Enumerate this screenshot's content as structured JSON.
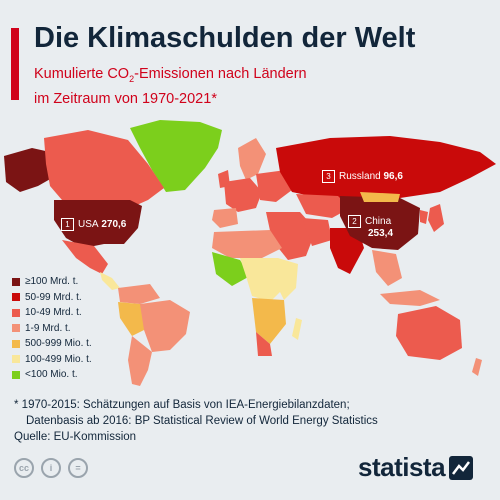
{
  "title": "Die Klimaschulden der Welt",
  "subtitle_prefix": "Kumulierte CO",
  "subtitle_sub": "2",
  "subtitle_suffix": "-Emissionen nach Ländern",
  "subtitle_line2": "im Zeitraum von 1970-2021*",
  "colors": {
    "accent": "#d0021b",
    "c100": "#7b1414",
    "c50": "#c90a0a",
    "c10": "#ec5b4e",
    "c1": "#f39177",
    "c500m": "#f3b94b",
    "c100m": "#f9e79a",
    "clt100m": "#7ccf1c",
    "ocean": "#e9edf0"
  },
  "legend": [
    {
      "label": "≥100 Mrd. t.",
      "color": "#7b1414"
    },
    {
      "label": "50-99 Mrd. t.",
      "color": "#c90a0a"
    },
    {
      "label": "10-49 Mrd. t.",
      "color": "#ec5b4e"
    },
    {
      "label": "1-9 Mrd. t.",
      "color": "#f39177"
    },
    {
      "label": "500-999 Mio. t.",
      "color": "#f3b94b"
    },
    {
      "label": "100-499 Mio. t.",
      "color": "#f9e79a"
    },
    {
      "label": "<100 Mio. t.",
      "color": "#7ccf1c"
    }
  ],
  "labels": [
    {
      "rank": "1",
      "country": "USA",
      "value": "270,6"
    },
    {
      "rank": "2",
      "country": "China",
      "value": "253,4"
    },
    {
      "rank": "3",
      "country": "Russland",
      "value": "96,6"
    }
  ],
  "footnote_line1": "* 1970-2015: Schätzungen auf Basis von IEA-Energiebilanzdaten;",
  "footnote_line2": "Datenbasis ab 2016: BP Statistical Review of World Energy Statistics",
  "source": "Quelle: EU-Kommission",
  "brand": "statista",
  "license_icons": [
    "cc",
    "i",
    "="
  ]
}
